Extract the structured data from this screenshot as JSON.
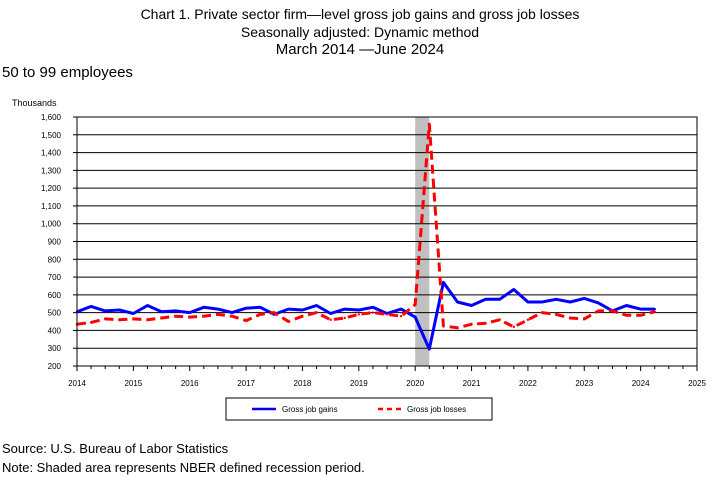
{
  "header": {
    "title_line1": "Chart 1. Private sector firm—level gross job gains and gross job losses",
    "title_line2": "Seasonally adjusted: Dynamic method",
    "title_line3": "March 2014  —June 2024",
    "subtitle": "50 to 99 employees"
  },
  "footer": {
    "source": "Source: U.S. Bureau of Labor Statistics",
    "note": "Note: Shaded area represents NBER defined recession period."
  },
  "chart_data": {
    "type": "line",
    "ylabel": "Thousands",
    "xlabel": "",
    "ylim": [
      200,
      1600
    ],
    "xlim": [
      2014,
      2025
    ],
    "y_ticks": [
      "200",
      "300",
      "400",
      "500",
      "600",
      "700",
      "800",
      "900",
      "1,000",
      "1,100",
      "1,200",
      "1,300",
      "1,400",
      "1,500",
      "1,600"
    ],
    "x_ticks": [
      "2014",
      "2015",
      "2016",
      "2017",
      "2018",
      "2019",
      "2020",
      "2021",
      "2022",
      "2023",
      "2024",
      "2025"
    ],
    "grid": "horizontal",
    "legend_position": "bottom-center",
    "recession_shading": {
      "start": 2020.0,
      "end": 2020.25,
      "color": "#c0c0c0"
    },
    "series": [
      {
        "name": "Gross job gains",
        "color": "#0000ff",
        "style": "solid",
        "x": [
          2014.0,
          2014.25,
          2014.5,
          2014.75,
          2015.0,
          2015.25,
          2015.5,
          2015.75,
          2016.0,
          2016.25,
          2016.5,
          2016.75,
          2017.0,
          2017.25,
          2017.5,
          2017.75,
          2018.0,
          2018.25,
          2018.5,
          2018.75,
          2019.0,
          2019.25,
          2019.5,
          2019.75,
          2020.0,
          2020.25,
          2020.5,
          2020.75,
          2021.0,
          2021.25,
          2021.5,
          2021.75,
          2022.0,
          2022.25,
          2022.5,
          2022.75,
          2023.0,
          2023.25,
          2023.5,
          2023.75,
          2024.0,
          2024.25
        ],
        "values": [
          505,
          535,
          510,
          515,
          495,
          540,
          505,
          510,
          500,
          530,
          520,
          500,
          525,
          530,
          490,
          520,
          515,
          540,
          495,
          520,
          515,
          530,
          495,
          520,
          475,
          295,
          670,
          560,
          540,
          575,
          575,
          630,
          560,
          560,
          575,
          560,
          580,
          555,
          510,
          540,
          520,
          520
        ]
      },
      {
        "name": "Gross job losses",
        "color": "#ff0000",
        "style": "dashed",
        "x": [
          2014.0,
          2014.25,
          2014.5,
          2014.75,
          2015.0,
          2015.25,
          2015.5,
          2015.75,
          2016.0,
          2016.25,
          2016.5,
          2016.75,
          2017.0,
          2017.25,
          2017.5,
          2017.75,
          2018.0,
          2018.25,
          2018.5,
          2018.75,
          2019.0,
          2019.25,
          2019.5,
          2019.75,
          2020.0,
          2020.25,
          2020.5,
          2020.75,
          2021.0,
          2021.25,
          2021.5,
          2021.75,
          2022.0,
          2022.25,
          2022.5,
          2022.75,
          2023.0,
          2023.25,
          2023.5,
          2023.75,
          2024.0,
          2024.25
        ],
        "values": [
          435,
          445,
          465,
          460,
          465,
          460,
          470,
          480,
          475,
          480,
          490,
          480,
          455,
          490,
          500,
          450,
          480,
          500,
          460,
          470,
          490,
          500,
          490,
          480,
          545,
          1560,
          425,
          415,
          435,
          440,
          460,
          420,
          460,
          500,
          490,
          470,
          465,
          510,
          510,
          485,
          485,
          505
        ]
      }
    ]
  }
}
